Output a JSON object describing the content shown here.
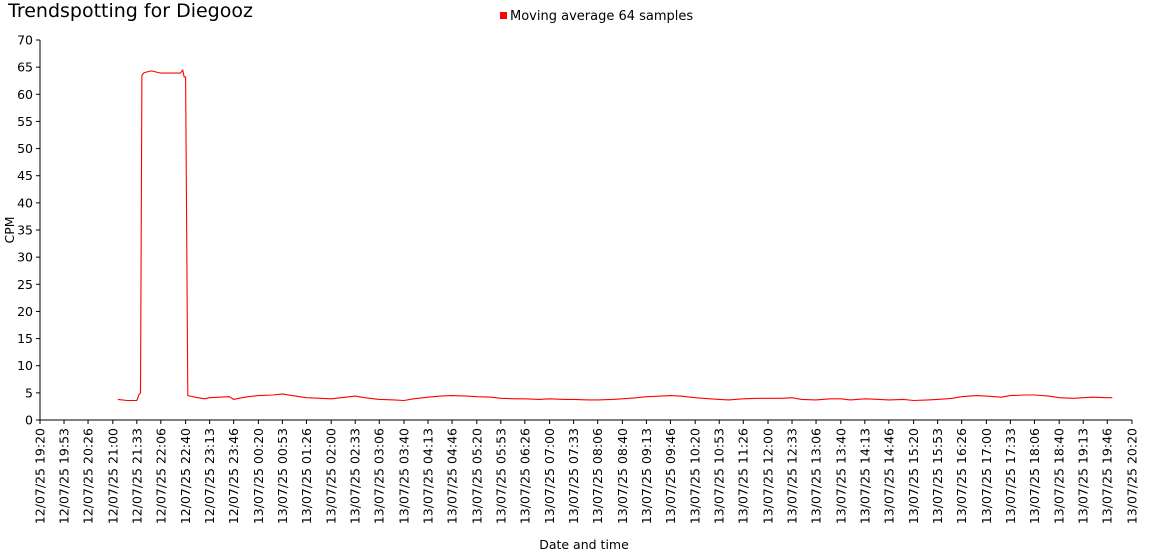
{
  "chart_data": {
    "type": "line",
    "title": "Trendspotting for Diegooz",
    "xlabel": "Date and time",
    "ylabel": "CPM",
    "ylim": [
      0,
      70
    ],
    "yticks": [
      "0",
      "5",
      "10",
      "15",
      "20",
      "25",
      "30",
      "35",
      "40",
      "45",
      "50",
      "55",
      "60",
      "65",
      "70"
    ],
    "xticks": [
      "12/07/25 19:20",
      "12/07/25 19:53",
      "12/07/25 20:26",
      "12/07/25 21:00",
      "12/07/25 21:33",
      "12/07/25 22:06",
      "12/07/25 22:40",
      "12/07/25 23:13",
      "12/07/25 23:46",
      "13/07/25 00:20",
      "13/07/25 00:53",
      "13/07/25 01:26",
      "13/07/25 02:00",
      "13/07/25 02:33",
      "13/07/25 03:06",
      "13/07/25 03:40",
      "13/07/25 04:13",
      "13/07/25 04:46",
      "13/07/25 05:20",
      "13/07/25 05:53",
      "13/07/25 06:26",
      "13/07/25 07:00",
      "13/07/25 07:33",
      "13/07/25 08:06",
      "13/07/25 08:40",
      "13/07/25 09:13",
      "13/07/25 09:46",
      "13/07/25 10:20",
      "13/07/25 10:53",
      "13/07/25 11:26",
      "13/07/25 12:00",
      "13/07/25 12:33",
      "13/07/25 13:06",
      "13/07/25 13:40",
      "13/07/25 14:13",
      "13/07/25 14:46",
      "13/07/25 15:20",
      "13/07/25 15:53",
      "13/07/25 16:26",
      "13/07/25 17:00",
      "13/07/25 17:33",
      "13/07/25 18:06",
      "13/07/25 18:40",
      "13/07/25 19:13",
      "13/07/25 19:46",
      "13/07/25 20:20"
    ],
    "legend_position": "top-center",
    "grid": false,
    "series": [
      {
        "name": "Moving average 64 samples",
        "color": "#ff0000",
        "x": [
          "12/07/25 21:07",
          "12/07/25 21:20",
          "12/07/25 21:26",
          "12/07/25 21:33",
          "12/07/25 21:36",
          "12/07/25 21:38",
          "12/07/25 21:40",
          "12/07/25 21:43",
          "12/07/25 21:53",
          "12/07/25 22:06",
          "12/07/25 22:20",
          "12/07/25 22:33",
          "12/07/25 22:36",
          "12/07/25 22:38",
          "12/07/25 22:40",
          "12/07/25 22:43",
          "12/07/25 22:53",
          "12/07/25 23:06",
          "12/07/25 23:13",
          "12/07/25 23:26",
          "12/07/25 23:40",
          "12/07/25 23:46",
          "12/07/25 23:53",
          "13/07/25 00:06",
          "13/07/25 00:20",
          "13/07/25 00:40",
          "13/07/25 00:53",
          "13/07/25 01:06",
          "13/07/25 01:26",
          "13/07/25 01:46",
          "13/07/25 02:00",
          "13/07/25 02:20",
          "13/07/25 02:33",
          "13/07/25 02:46",
          "13/07/25 03:06",
          "13/07/25 03:26",
          "13/07/25 03:40",
          "13/07/25 03:53",
          "13/07/25 04:13",
          "13/07/25 04:30",
          "13/07/25 04:46",
          "13/07/25 05:06",
          "13/07/25 05:20",
          "13/07/25 05:40",
          "13/07/25 05:53",
          "13/07/25 06:13",
          "13/07/25 06:26",
          "13/07/25 06:46",
          "13/07/25 07:00",
          "13/07/25 07:20",
          "13/07/25 07:33",
          "13/07/25 07:53",
          "13/07/25 08:06",
          "13/07/25 08:26",
          "13/07/25 08:40",
          "13/07/25 09:00",
          "13/07/25 09:13",
          "13/07/25 09:33",
          "13/07/25 09:46",
          "13/07/25 10:00",
          "13/07/25 10:20",
          "13/07/25 10:40",
          "13/07/25 10:53",
          "13/07/25 11:06",
          "13/07/25 11:26",
          "13/07/25 11:46",
          "13/07/25 12:00",
          "13/07/25 12:20",
          "13/07/25 12:33",
          "13/07/25 12:46",
          "13/07/25 13:06",
          "13/07/25 13:26",
          "13/07/25 13:40",
          "13/07/25 13:53",
          "13/07/25 14:13",
          "13/07/25 14:33",
          "13/07/25 14:46",
          "13/07/25 15:06",
          "13/07/25 15:20",
          "13/07/25 15:40",
          "13/07/25 15:53",
          "13/07/25 16:13",
          "13/07/25 16:26",
          "13/07/25 16:46",
          "13/07/25 17:00",
          "13/07/25 17:20",
          "13/07/25 17:33",
          "13/07/25 17:53",
          "13/07/25 18:06",
          "13/07/25 18:26",
          "13/07/25 18:40",
          "13/07/25 19:00",
          "13/07/25 19:13",
          "13/07/25 19:26",
          "13/07/25 19:46",
          "13/07/25 19:53"
        ],
        "y": [
          3.8,
          3.6,
          3.6,
          3.6,
          4.7,
          5.0,
          63.5,
          64.0,
          64.3,
          63.9,
          63.9,
          63.9,
          64.5,
          63.2,
          63.2,
          4.5,
          4.2,
          3.9,
          4.1,
          4.2,
          4.3,
          3.8,
          4.0,
          4.3,
          4.5,
          4.6,
          4.8,
          4.5,
          4.1,
          4.0,
          3.9,
          4.2,
          4.4,
          4.1,
          3.8,
          3.7,
          3.6,
          3.9,
          4.2,
          4.4,
          4.5,
          4.4,
          4.3,
          4.2,
          4.0,
          3.9,
          3.9,
          3.8,
          3.9,
          3.8,
          3.8,
          3.7,
          3.7,
          3.8,
          3.9,
          4.1,
          4.3,
          4.4,
          4.5,
          4.4,
          4.1,
          3.9,
          3.8,
          3.7,
          3.9,
          4.0,
          4.0,
          4.0,
          4.1,
          3.8,
          3.7,
          3.9,
          3.9,
          3.7,
          3.9,
          3.8,
          3.7,
          3.8,
          3.6,
          3.7,
          3.8,
          4.0,
          4.3,
          4.5,
          4.4,
          4.2,
          4.5,
          4.6,
          4.6,
          4.4,
          4.1,
          4.0,
          4.1,
          4.2,
          4.1,
          4.1
        ]
      }
    ]
  }
}
